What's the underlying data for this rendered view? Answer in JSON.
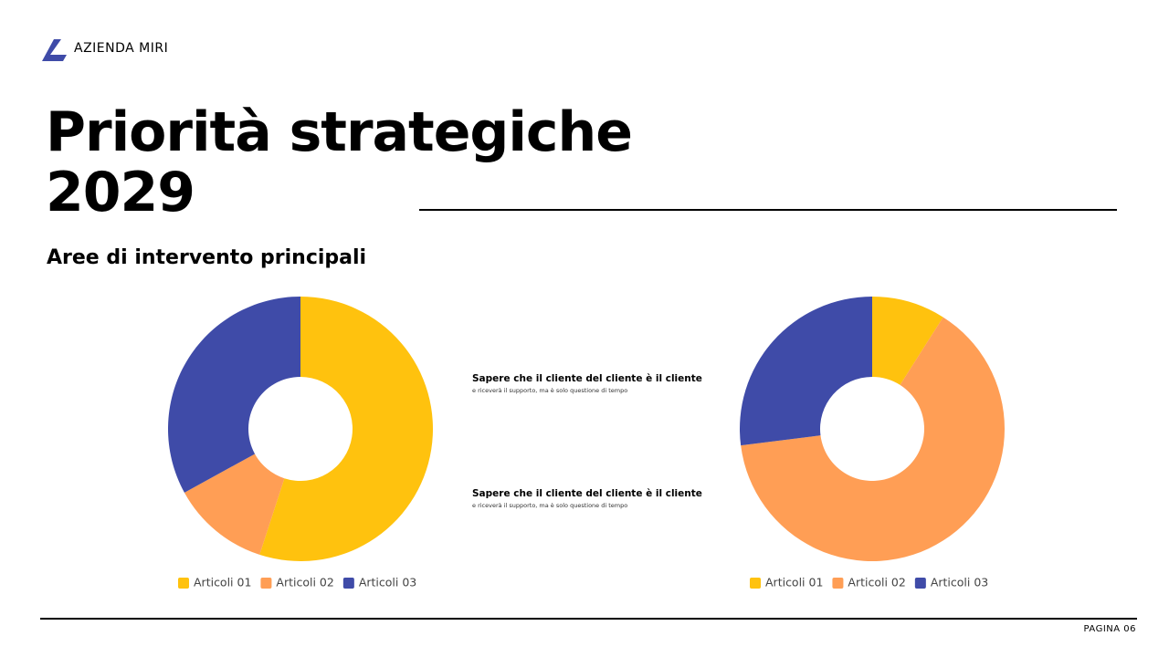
{
  "brand": "AZIENDA MIRI",
  "title": "Priorità strategiche 2029",
  "subtitle": "Aree di intervento principali",
  "notes": [
    {
      "heading": "Sapere che il cliente del cliente è il cliente",
      "text": "e riceverà il supporto, ma è solo questione di tempo"
    },
    {
      "heading": "Sapere che il cliente del cliente è il cliente",
      "text": "e riceverà il supporto, ma è solo questione di tempo"
    }
  ],
  "page_label": "PAGINA 06",
  "chart_data": [
    {
      "type": "donut",
      "categories": [
        "Articoli 01",
        "Articoli 02",
        "Articoli 03"
      ],
      "values": [
        55,
        12,
        33
      ],
      "colors": [
        "#FFC20E",
        "#FF9E55",
        "#3F4BA8"
      ],
      "legend": "bottom"
    },
    {
      "type": "donut",
      "categories": [
        "Articoli 01",
        "Articoli 02",
        "Articoli 03"
      ],
      "values": [
        9,
        64,
        27
      ],
      "colors": [
        "#FFC20E",
        "#FF9E55",
        "#3F4BA8"
      ],
      "legend": "bottom"
    }
  ]
}
